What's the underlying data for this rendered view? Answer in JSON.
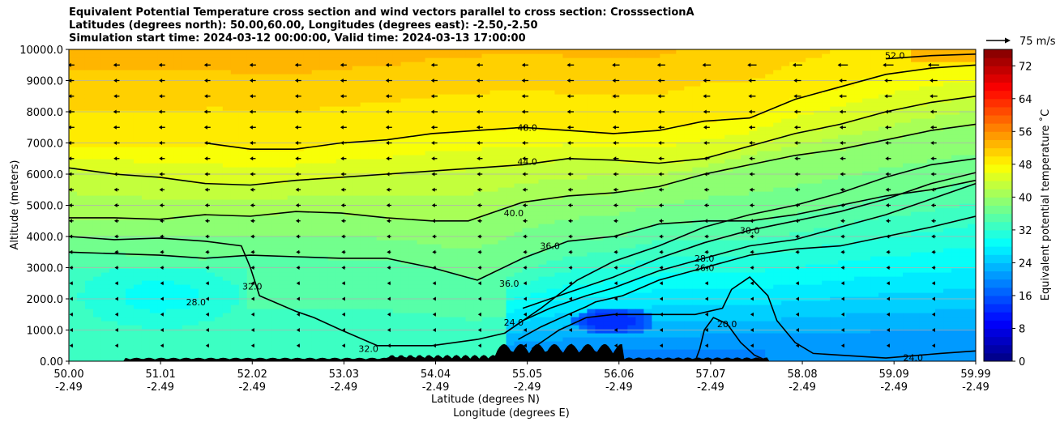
{
  "chart_data": {
    "type": "heatmap",
    "title": [
      "Equivalent Potential Temperature cross section and wind vectors parallel to cross section: CrosssectionA",
      "Latitudes (degrees north): 50.00,60.00, Longitudes (degrees east): -2.50,-2.50",
      "Simulation start time: 2024-03-12 00:00:00, Valid time: 2024-03-13 17:00:00"
    ],
    "xlabel_lat": "Latitude (degrees N)",
    "xlabel_lon": "Longitude (degrees E)",
    "ylabel": "Altitude (meters)",
    "colorbar_label": "Equivalent potential temperature $^\\circ$C",
    "colorbar_label_text": "Equivalent potential temperature ˚C",
    "quiver_key": "75 m/s",
    "xlim": [
      50.0,
      59.99
    ],
    "ylim": [
      0,
      10000
    ],
    "clim": [
      0,
      76
    ],
    "x_ticks": [
      {
        "lat": "50.00",
        "lon": "-2.49"
      },
      {
        "lat": "51.01",
        "lon": "-2.49"
      },
      {
        "lat": "52.02",
        "lon": "-2.49"
      },
      {
        "lat": "53.03",
        "lon": "-2.49"
      },
      {
        "lat": "54.04",
        "lon": "-2.49"
      },
      {
        "lat": "55.05",
        "lon": "-2.49"
      },
      {
        "lat": "56.06",
        "lon": "-2.49"
      },
      {
        "lat": "57.07",
        "lon": "-2.49"
      },
      {
        "lat": "58.08",
        "lon": "-2.49"
      },
      {
        "lat": "59.09",
        "lon": "-2.49"
      },
      {
        "lat": "59.99",
        "lon": "-2.49"
      }
    ],
    "y_ticks": [
      "0.00",
      "1000.0",
      "2000.0",
      "3000.0",
      "4000.0",
      "5000.0",
      "6000.0",
      "7000.0",
      "8000.0",
      "9000.0",
      "10000.0"
    ],
    "colorbar_ticks": [
      "0",
      "8",
      "16",
      "24",
      "32",
      "40",
      "48",
      "56",
      "64",
      "72"
    ],
    "colorbar_levels": [
      0,
      2,
      4,
      6,
      8,
      10,
      12,
      14,
      16,
      18,
      20,
      22,
      24,
      26,
      28,
      30,
      32,
      34,
      36,
      38,
      40,
      42,
      44,
      46,
      48,
      50,
      52,
      54,
      56,
      58,
      60,
      62,
      64,
      66,
      68,
      70,
      72,
      74,
      76
    ],
    "grid": "horizontal",
    "contours": [
      {
        "level": 20,
        "label": "20.0",
        "points": [
          [
            56.9,
            0
          ],
          [
            56.95,
            400
          ],
          [
            57.0,
            1000
          ],
          [
            57.1,
            1400
          ],
          [
            57.25,
            1200
          ],
          [
            57.4,
            600
          ],
          [
            57.55,
            200
          ],
          [
            57.7,
            0
          ]
        ]
      },
      {
        "level": 24,
        "label": "24.0",
        "points": [
          [
            55.1,
            400
          ],
          [
            55.4,
            1000
          ],
          [
            55.7,
            1400
          ],
          [
            56.0,
            1500
          ],
          [
            56.5,
            1500
          ],
          [
            56.9,
            1500
          ],
          [
            57.2,
            1700
          ],
          [
            57.3,
            2300
          ],
          [
            57.5,
            2700
          ],
          [
            57.7,
            2100
          ],
          [
            57.8,
            1300
          ],
          [
            58.0,
            600
          ],
          [
            58.2,
            250
          ],
          [
            59.0,
            100
          ],
          [
            59.6,
            250
          ],
          [
            59.99,
            330
          ]
        ],
        "label_at": [
          59.3,
          120
        ],
        "label2": "24.0",
        "label2_at": [
          54.9,
          1250
        ]
      },
      {
        "level": 26,
        "label": "26.0",
        "points": [
          [
            54.95,
            700
          ],
          [
            55.2,
            1100
          ],
          [
            55.5,
            1500
          ],
          [
            55.7,
            1750
          ],
          [
            55.8,
            1900
          ],
          [
            56.1,
            2100
          ],
          [
            56.5,
            2600
          ],
          [
            57.0,
            3000
          ],
          [
            57.5,
            3400
          ],
          [
            58.0,
            3600
          ],
          [
            58.5,
            3700
          ],
          [
            59.0,
            4000
          ],
          [
            59.5,
            4300
          ],
          [
            59.99,
            4650
          ]
        ]
      },
      {
        "level": 28,
        "label": "28.0",
        "points": [
          [
            54.8,
            900
          ],
          [
            55.0,
            1300
          ],
          [
            55.3,
            1700
          ],
          [
            55.7,
            2100
          ],
          [
            56.0,
            2350
          ],
          [
            56.5,
            2900
          ],
          [
            57.0,
            3300
          ],
          [
            57.5,
            3700
          ],
          [
            58.0,
            3900
          ],
          [
            58.5,
            4300
          ],
          [
            59.0,
            4700
          ],
          [
            59.5,
            5200
          ],
          [
            59.99,
            5700
          ]
        ],
        "label2": "28.0",
        "label2_at": [
          51.4,
          1900
        ]
      },
      {
        "level": 30,
        "label": "30.0",
        "points": [
          [
            55.0,
            1700
          ],
          [
            55.5,
            2200
          ],
          [
            56.0,
            2700
          ],
          [
            56.5,
            3300
          ],
          [
            57.0,
            3800
          ],
          [
            57.5,
            4200
          ],
          [
            58.0,
            4500
          ],
          [
            58.5,
            4800
          ],
          [
            59.0,
            5200
          ],
          [
            59.5,
            5700
          ],
          [
            59.99,
            6050
          ]
        ]
      },
      {
        "level": 32,
        "label": "32.0",
        "points": [
          [
            50.0,
            4000
          ],
          [
            50.5,
            3900
          ],
          [
            51.0,
            3950
          ],
          [
            51.5,
            3850
          ],
          [
            51.9,
            3700
          ],
          [
            52.0,
            3000
          ],
          [
            52.1,
            2100
          ],
          [
            52.5,
            1600
          ],
          [
            52.7,
            1400
          ],
          [
            53.0,
            1000
          ],
          [
            53.4,
            500
          ],
          [
            54.0,
            500
          ],
          [
            54.5,
            700
          ],
          [
            54.8,
            900
          ],
          [
            55.2,
            1700
          ],
          [
            55.6,
            2600
          ],
          [
            56.0,
            3200
          ],
          [
            56.5,
            3700
          ],
          [
            57.0,
            4300
          ],
          [
            57.5,
            4700
          ],
          [
            58.0,
            5000
          ],
          [
            58.5,
            5400
          ],
          [
            59.0,
            5900
          ],
          [
            59.5,
            6300
          ],
          [
            59.99,
            6500
          ]
        ],
        "label_at": [
          52.02,
          2400
        ],
        "label2": "32.0",
        "label2_at": [
          53.3,
          400
        ]
      },
      {
        "level": 36,
        "label": "36.0",
        "points": [
          [
            50.0,
            3500
          ],
          [
            50.5,
            3450
          ],
          [
            51.0,
            3400
          ],
          [
            51.5,
            3300
          ],
          [
            52.0,
            3400
          ],
          [
            52.5,
            3350
          ],
          [
            53.0,
            3300
          ],
          [
            53.5,
            3300
          ],
          [
            54.0,
            3000
          ],
          [
            54.5,
            2600
          ],
          [
            55.0,
            3300
          ],
          [
            55.5,
            3850
          ],
          [
            56.0,
            4000
          ],
          [
            56.5,
            4400
          ],
          [
            57.0,
            4500
          ],
          [
            57.5,
            4500
          ],
          [
            58.0,
            4700
          ],
          [
            58.5,
            5000
          ],
          [
            59.0,
            5300
          ],
          [
            59.5,
            5500
          ],
          [
            59.99,
            5800
          ]
        ],
        "label_at": [
          54.85,
          2500
        ],
        "label2": "36.0",
        "label2_at": [
          55.3,
          3700
        ]
      },
      {
        "level": 40,
        "label": "40.0",
        "points": [
          [
            50.0,
            4600
          ],
          [
            50.5,
            4600
          ],
          [
            51.0,
            4550
          ],
          [
            51.5,
            4700
          ],
          [
            52.0,
            4650
          ],
          [
            52.5,
            4800
          ],
          [
            53.0,
            4750
          ],
          [
            53.5,
            4600
          ],
          [
            54.0,
            4500
          ],
          [
            54.4,
            4500
          ],
          [
            54.7,
            4800
          ],
          [
            55.0,
            5100
          ],
          [
            55.5,
            5300
          ],
          [
            56.0,
            5400
          ],
          [
            56.5,
            5600
          ],
          [
            57.0,
            6000
          ],
          [
            57.5,
            6300
          ],
          [
            58.0,
            6600
          ],
          [
            58.5,
            6800
          ],
          [
            59.0,
            7100
          ],
          [
            59.5,
            7400
          ],
          [
            59.99,
            7600
          ]
        ],
        "label_at": [
          54.9,
          4750
        ]
      },
      {
        "level": 44,
        "label": "44.0",
        "points": [
          [
            50.0,
            6200
          ],
          [
            50.5,
            6000
          ],
          [
            51.0,
            5900
          ],
          [
            51.5,
            5700
          ],
          [
            52.0,
            5650
          ],
          [
            52.5,
            5800
          ],
          [
            53.0,
            5900
          ],
          [
            53.5,
            6000
          ],
          [
            54.0,
            6100
          ],
          [
            54.5,
            6200
          ],
          [
            55.0,
            6300
          ],
          [
            55.5,
            6500
          ],
          [
            56.0,
            6450
          ],
          [
            56.5,
            6350
          ],
          [
            57.0,
            6500
          ],
          [
            57.5,
            6900
          ],
          [
            58.0,
            7300
          ],
          [
            58.5,
            7600
          ],
          [
            59.0,
            8000
          ],
          [
            59.5,
            8300
          ],
          [
            59.99,
            8500
          ]
        ],
        "label_at": [
          55.05,
          6400
        ]
      },
      {
        "level": 48,
        "label": "48.0",
        "points": [
          [
            51.5,
            7000
          ],
          [
            52.0,
            6800
          ],
          [
            52.5,
            6800
          ],
          [
            53.0,
            7000
          ],
          [
            53.5,
            7100
          ],
          [
            54.0,
            7300
          ],
          [
            54.5,
            7400
          ],
          [
            55.0,
            7500
          ],
          [
            55.5,
            7400
          ],
          [
            56.0,
            7300
          ],
          [
            56.5,
            7400
          ],
          [
            57.0,
            7700
          ],
          [
            57.5,
            7800
          ],
          [
            58.0,
            8400
          ],
          [
            58.5,
            8800
          ],
          [
            59.0,
            9200
          ],
          [
            59.5,
            9400
          ],
          [
            59.99,
            9500
          ]
        ],
        "label_at": [
          55.05,
          7500
        ]
      },
      {
        "level": 52,
        "label": "52.0",
        "points": [
          [
            59.0,
            9700
          ],
          [
            59.5,
            9800
          ],
          [
            59.99,
            9850
          ]
        ],
        "label_at": [
          59.1,
          9800
        ]
      }
    ]
  }
}
